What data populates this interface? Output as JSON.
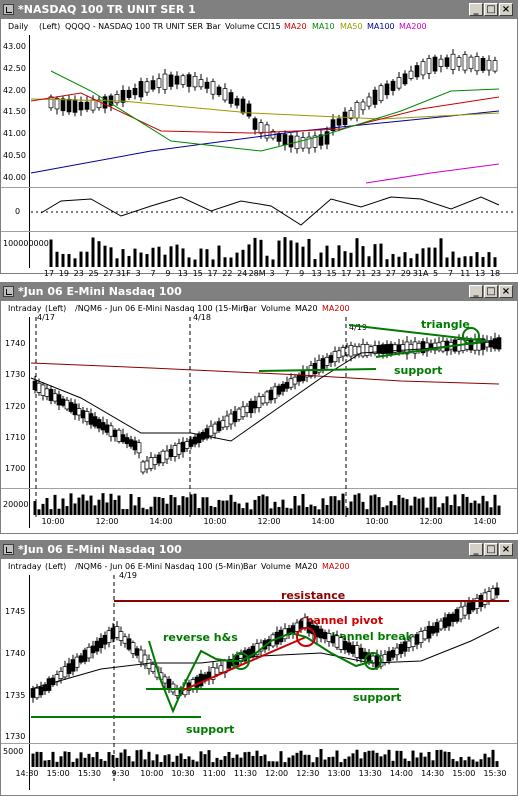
{
  "windows": [
    {
      "title": "*NASDAQ 100 TR UNIT SER 1",
      "info": [
        "Daily",
        "(Left)",
        "QQQQ - NASDAQ 100 TR UNIT SER 1",
        "Bar",
        "Volume",
        "CCI15",
        "MA20",
        "MA10",
        "MA50",
        "MA100",
        "MA200"
      ],
      "info_colors": [
        "#000",
        "#000",
        "#000",
        "#000",
        "#000",
        "#000",
        "#cc0000",
        "#008800",
        "#999900",
        "#000099",
        "#cc00cc"
      ],
      "price_labels": [
        "43.00",
        "42.50",
        "42.00",
        "41.50",
        "41.00",
        "40.50",
        "40.00"
      ],
      "cci_labels": [
        "0"
      ],
      "vol_labels": [
        "100000000"
      ],
      "x_labels": [
        "17",
        "19",
        "23",
        "25",
        "27",
        "31F",
        "3",
        "7",
        "9",
        "13",
        "15",
        "17",
        "22",
        "24",
        "28M",
        "3",
        "7",
        "9",
        "13",
        "15",
        "17",
        "21",
        "23",
        "27",
        "29",
        "31A",
        "5",
        "7",
        "11",
        "13",
        "18"
      ]
    },
    {
      "title": "*Jun 06  E-Mini Nasdaq 100",
      "info": [
        "Intraday",
        "(Left)",
        "/NQM6 - Jun 06  E-Mini Nasdaq 100 (15-Min)",
        "Bar",
        "Volume",
        "MA20",
        "MA200"
      ],
      "info_colors": [
        "#000",
        "#000",
        "#000",
        "#000",
        "#000",
        "#000",
        "#cc0000"
      ],
      "price_labels": [
        "1740",
        "1730",
        "1720",
        "1710",
        "1700"
      ],
      "vol_labels": [
        "20000"
      ],
      "x_labels": [
        "10:00",
        "12:00",
        "14:00",
        "10:00",
        "12:00",
        "14:00",
        "10:00",
        "12:00",
        "14:00"
      ],
      "date_markers": [
        "4/17",
        "4/18",
        "4/19"
      ],
      "annotations": {
        "triangle": "triangle",
        "support": "support"
      }
    },
    {
      "title": "*Jun 06  E-Mini Nasdaq 100",
      "info": [
        "Intraday",
        "(Left)",
        "/NQM6 - Jun 06  E-Mini Nasdaq 100 (5-Min)",
        "Bar",
        "Volume",
        "MA20",
        "MA200"
      ],
      "info_colors": [
        "#000",
        "#000",
        "#000",
        "#000",
        "#000",
        "#000",
        "#cc0000"
      ],
      "price_labels": [
        "1745",
        "1740",
        "1735",
        "1730"
      ],
      "vol_labels": [
        "5000"
      ],
      "x_labels": [
        "14:30",
        "15:00",
        "15:30",
        "9:30",
        "10:00",
        "10:30",
        "11:00",
        "11:30",
        "12:00",
        "12:30",
        "13:00",
        "13:30",
        "14:00",
        "14:30",
        "15:00",
        "15:30"
      ],
      "date_markers": [
        "4/19"
      ],
      "annotations": {
        "resistance": "resistance",
        "channel_pivot": "channel pivot",
        "reverse_hs": "reverse h&s",
        "channel_break": "channel break",
        "support1": "support",
        "support2": "support"
      }
    }
  ],
  "colors": {
    "green": "#007a00",
    "red": "#cc0000",
    "darkred": "#8b0000",
    "title_bg": "#808080"
  }
}
